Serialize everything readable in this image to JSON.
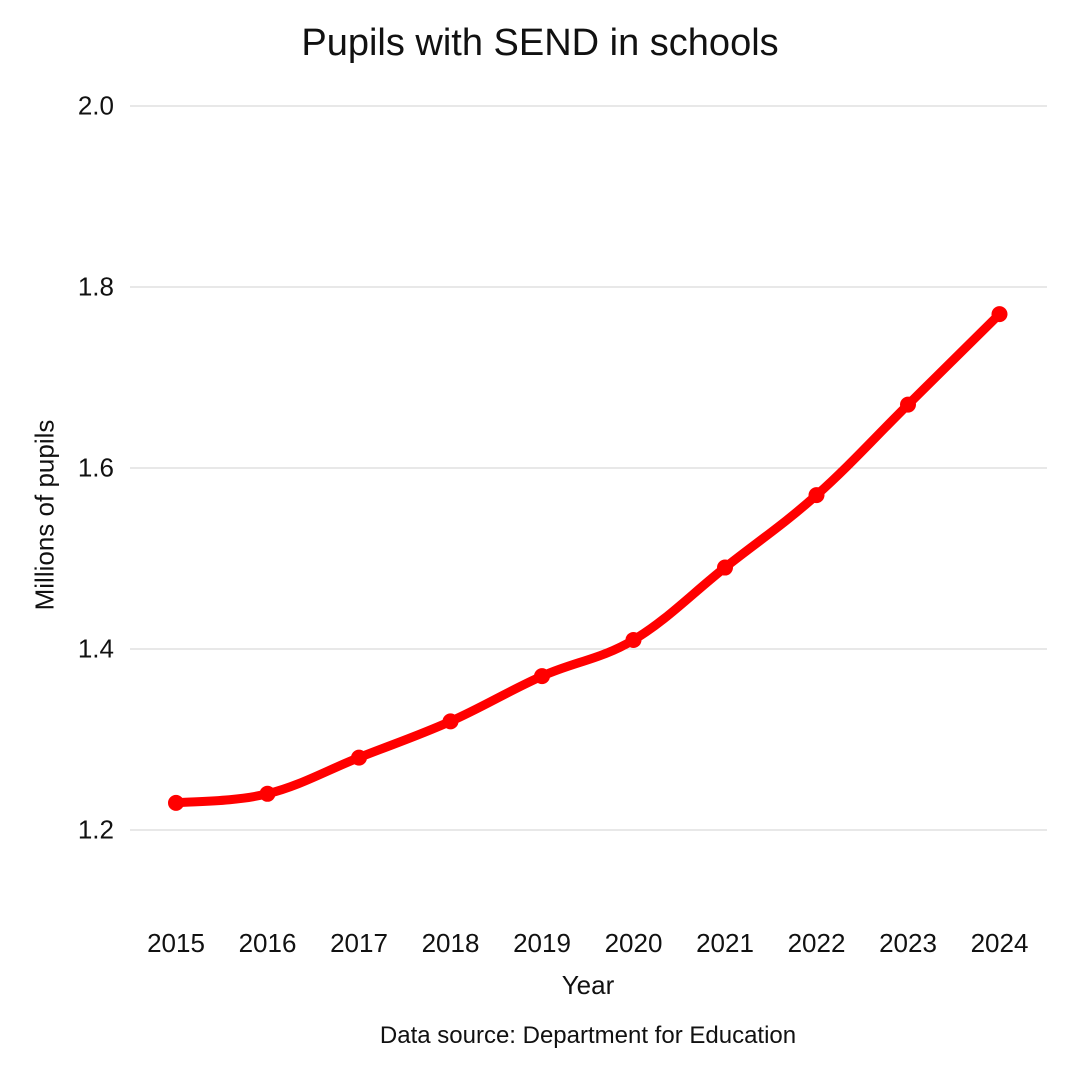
{
  "chart_data": {
    "type": "line",
    "title": "Pupils with SEND in schools",
    "xlabel": "Year",
    "ylabel": "Millions of pupils",
    "source": "Data source: Department for Education",
    "categories": [
      "2015",
      "2016",
      "2017",
      "2018",
      "2019",
      "2020",
      "2021",
      "2022",
      "2023",
      "2024"
    ],
    "series": [
      {
        "name": "Pupils with SEND",
        "color": "#ff0000",
        "values": [
          1.23,
          1.24,
          1.28,
          1.32,
          1.37,
          1.41,
          1.49,
          1.57,
          1.67,
          1.77
        ]
      }
    ],
    "yticks": [
      "1.2",
      "1.4",
      "1.6",
      "1.8",
      "2.0"
    ],
    "ylim": [
      1.1,
      2.0
    ],
    "grid": true,
    "legend": "none"
  }
}
